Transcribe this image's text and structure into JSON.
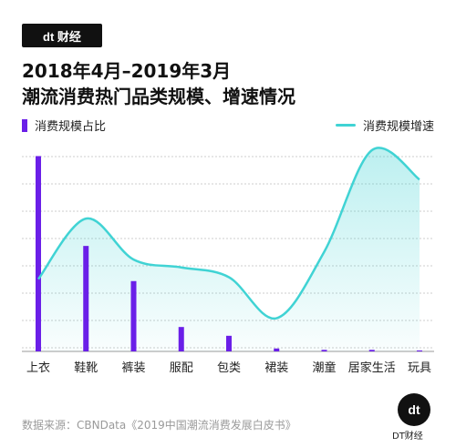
{
  "brand": {
    "logo_text": "dt 财经",
    "badge_glyph": "dt",
    "badge_text": "DT财经"
  },
  "title_line1": "2018年4月–2019年3月",
  "title_line2": "潮流消费热门品类规模、增速情况",
  "legend_left": "消费规模占比",
  "legend_right": "消费规模增速",
  "source": "数据来源：CBNData《2019中国潮流消费发展白皮书》",
  "colors": {
    "bar": "#6a1fe8",
    "line": "#40d3d4",
    "fill": "#d9f5f7",
    "grid": "#cccccc"
  },
  "chart_data": {
    "type": "bar",
    "categories": [
      "上衣",
      "鞋靴",
      "裤装",
      "服配",
      "包类",
      "裙装",
      "潮童",
      "居家生活",
      "玩具"
    ],
    "series": [
      {
        "name": "消费规模占比",
        "values": [
          100,
          54,
          36,
          12.5,
          8,
          1.5,
          0.8,
          0.8,
          0.5
        ]
      },
      {
        "name": "消费规模增速",
        "values": [
          37,
          68,
          47,
          43,
          38,
          17,
          51,
          103,
          88
        ]
      }
    ],
    "ylim": [
      0,
      110
    ],
    "grid": true
  }
}
